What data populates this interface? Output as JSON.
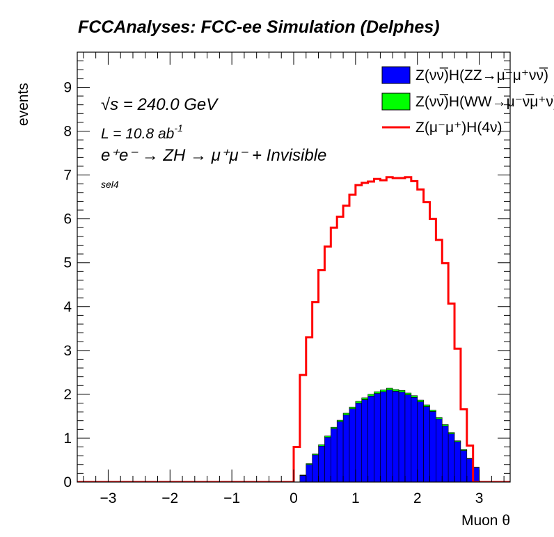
{
  "chart_data": {
    "type": "histogram",
    "title": "FCCAnalyses: FCC-ee Simulation (Delphes)",
    "xlabel": "Muon θ",
    "ylabel": "events",
    "xlim": [
      -3.5,
      3.5
    ],
    "ylim": [
      0,
      9.8
    ],
    "xticks": [
      -3,
      -2,
      -1,
      0,
      1,
      2,
      3
    ],
    "yticks": [
      0,
      1,
      2,
      3,
      4,
      5,
      6,
      7,
      8,
      9
    ],
    "annotations": {
      "sqrts": "√s = 240.0 GeV",
      "lumi_main": "L = 10.8 ab",
      "lumi_sup": "-1",
      "process": "e⁺e⁻ → ZH → μ⁺μ⁻ + Invisible",
      "selection": "sel4"
    },
    "bin_edges": [
      0.0,
      0.1,
      0.2,
      0.3,
      0.4,
      0.5,
      0.6,
      0.7,
      0.8,
      0.9,
      1.0,
      1.1,
      1.2,
      1.3,
      1.4,
      1.5,
      1.6,
      1.7,
      1.8,
      1.9,
      2.0,
      2.1,
      2.2,
      2.3,
      2.4,
      2.5,
      2.6,
      2.7,
      2.8,
      2.9,
      3.0,
      3.1
    ],
    "series": [
      {
        "name": "Z(νν̅)H(ZZ→μ⁻μ⁺νν̅)",
        "kind": "stack-fill",
        "color": "#0000ff",
        "values": [
          0.0,
          0.15,
          0.4,
          0.62,
          0.82,
          1.02,
          1.22,
          1.38,
          1.53,
          1.67,
          1.8,
          1.88,
          1.96,
          2.02,
          2.06,
          2.1,
          2.07,
          2.05,
          1.99,
          1.93,
          1.83,
          1.72,
          1.61,
          1.44,
          1.28,
          1.1,
          0.92,
          0.72,
          0.53,
          0.33,
          0.0
        ]
      },
      {
        "name": "Z(νν̅)H(WW→μ⁻ν̅μ⁺ν)",
        "kind": "stack-fill",
        "color": "#00ff00",
        "values": [
          0.0,
          0.01,
          0.02,
          0.02,
          0.03,
          0.03,
          0.03,
          0.03,
          0.04,
          0.04,
          0.04,
          0.04,
          0.04,
          0.04,
          0.04,
          0.04,
          0.04,
          0.04,
          0.04,
          0.04,
          0.04,
          0.04,
          0.03,
          0.03,
          0.03,
          0.03,
          0.02,
          0.02,
          0.01,
          0.01,
          0.0
        ]
      },
      {
        "name": "Z(μ⁻μ⁺)H(4ν)",
        "kind": "line",
        "color": "#ff0000",
        "values": [
          0.8,
          2.44,
          3.3,
          4.1,
          4.83,
          5.37,
          5.8,
          6.05,
          6.3,
          6.55,
          6.77,
          6.82,
          6.85,
          6.91,
          6.88,
          6.95,
          6.93,
          6.93,
          6.95,
          6.86,
          6.67,
          6.38,
          6.0,
          5.52,
          4.99,
          4.07,
          3.04,
          1.66,
          0.83,
          0.0,
          0.0
        ]
      }
    ],
    "legend": {
      "placement": "top-right",
      "entries": [
        "Z(νν̅)H(ZZ→μ⁻μ⁺νν̅)",
        "Z(νν̅)H(WW→μ⁻ν̅μ⁺ν)",
        "Z(μ⁻μ⁺)H(4ν)"
      ]
    }
  }
}
